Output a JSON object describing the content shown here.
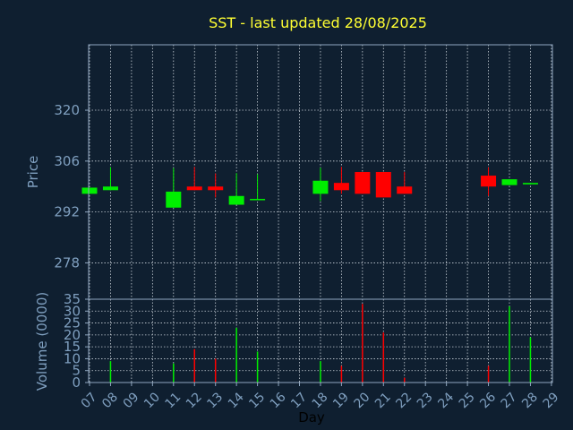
{
  "colors": {
    "background": "#0f1f30",
    "axis": "#8fa6bf",
    "grid": "#c8d0d8",
    "title": "#ffff33",
    "label": "#7f9fbf",
    "day_label": "#000000",
    "up": "#00ee00",
    "down": "#ff0000"
  },
  "chart_data": [
    {
      "type": "candlestick",
      "title": "SST - last updated 28/08/2025",
      "ylabel": "Price",
      "ylim": [
        268,
        338
      ],
      "yticks": [
        278,
        292,
        306,
        320
      ],
      "grid": true,
      "categories": [
        "07",
        "08",
        "09",
        "10",
        "11",
        "12",
        "13",
        "14",
        "15",
        "16",
        "17",
        "18",
        "19",
        "20",
        "21",
        "22",
        "23",
        "24",
        "25",
        "26",
        "27",
        "28",
        "29"
      ],
      "candles": [
        {
          "x": "07",
          "open": 297.0,
          "close": 298.7,
          "high": 298.7,
          "low": 297.0
        },
        {
          "x": "08",
          "open": 298.0,
          "close": 299.0,
          "high": 304.3,
          "low": 298.0
        },
        {
          "x": "11",
          "open": 293.2,
          "close": 297.6,
          "high": 304.1,
          "low": 293.2
        },
        {
          "x": "12",
          "open": 299.0,
          "close": 298.0,
          "high": 304.4,
          "low": 298.0
        },
        {
          "x": "13",
          "open": 299.0,
          "close": 298.0,
          "high": 302.6,
          "low": 296.0
        },
        {
          "x": "14",
          "open": 294.0,
          "close": 296.4,
          "high": 302.7,
          "low": 294.0
        },
        {
          "x": "15",
          "open": 295.3,
          "close": 295.6,
          "high": 302.4,
          "low": 295.3
        },
        {
          "x": "18",
          "open": 297.0,
          "close": 300.6,
          "high": 304.2,
          "low": 295.0
        },
        {
          "x": "19",
          "open": 300.0,
          "close": 298.0,
          "high": 304.4,
          "low": 297.0
        },
        {
          "x": "20",
          "open": 303.0,
          "close": 297.0,
          "high": 303.0,
          "low": 297.0
        },
        {
          "x": "21",
          "open": 303.0,
          "close": 296.0,
          "high": 303.0,
          "low": 296.0
        },
        {
          "x": "22",
          "open": 299.0,
          "close": 297.0,
          "high": 303.0,
          "low": 297.0
        },
        {
          "x": "26",
          "open": 302.0,
          "close": 299.0,
          "high": 304.3,
          "low": 296.4
        },
        {
          "x": "27",
          "open": 299.4,
          "close": 301.0,
          "high": 301.0,
          "low": 299.4
        },
        {
          "x": "28",
          "open": 299.6,
          "close": 300.0,
          "high": 300.0,
          "low": 299.6
        }
      ]
    },
    {
      "type": "bar",
      "xlabel": "Day",
      "ylabel": "Volume (0000)",
      "ylim": [
        0,
        35
      ],
      "yticks": [
        0,
        5,
        10,
        15,
        20,
        25,
        30,
        35
      ],
      "grid": true,
      "categories": [
        "07",
        "08",
        "09",
        "10",
        "11",
        "12",
        "13",
        "14",
        "15",
        "16",
        "17",
        "18",
        "19",
        "20",
        "21",
        "22",
        "23",
        "24",
        "25",
        "26",
        "27",
        "28",
        "29"
      ],
      "bars": [
        {
          "x": "08",
          "value": 9,
          "direction": "up"
        },
        {
          "x": "11",
          "value": 8,
          "direction": "up"
        },
        {
          "x": "12",
          "value": 14,
          "direction": "down"
        },
        {
          "x": "13",
          "value": 10,
          "direction": "down"
        },
        {
          "x": "14",
          "value": 23,
          "direction": "up"
        },
        {
          "x": "15",
          "value": 13,
          "direction": "up"
        },
        {
          "x": "18",
          "value": 9,
          "direction": "up"
        },
        {
          "x": "19",
          "value": 7,
          "direction": "down"
        },
        {
          "x": "20",
          "value": 33,
          "direction": "down"
        },
        {
          "x": "21",
          "value": 21,
          "direction": "down"
        },
        {
          "x": "22",
          "value": 2,
          "direction": "down"
        },
        {
          "x": "26",
          "value": 7,
          "direction": "down"
        },
        {
          "x": "27",
          "value": 32,
          "direction": "up"
        },
        {
          "x": "28",
          "value": 19,
          "direction": "up"
        }
      ]
    }
  ]
}
